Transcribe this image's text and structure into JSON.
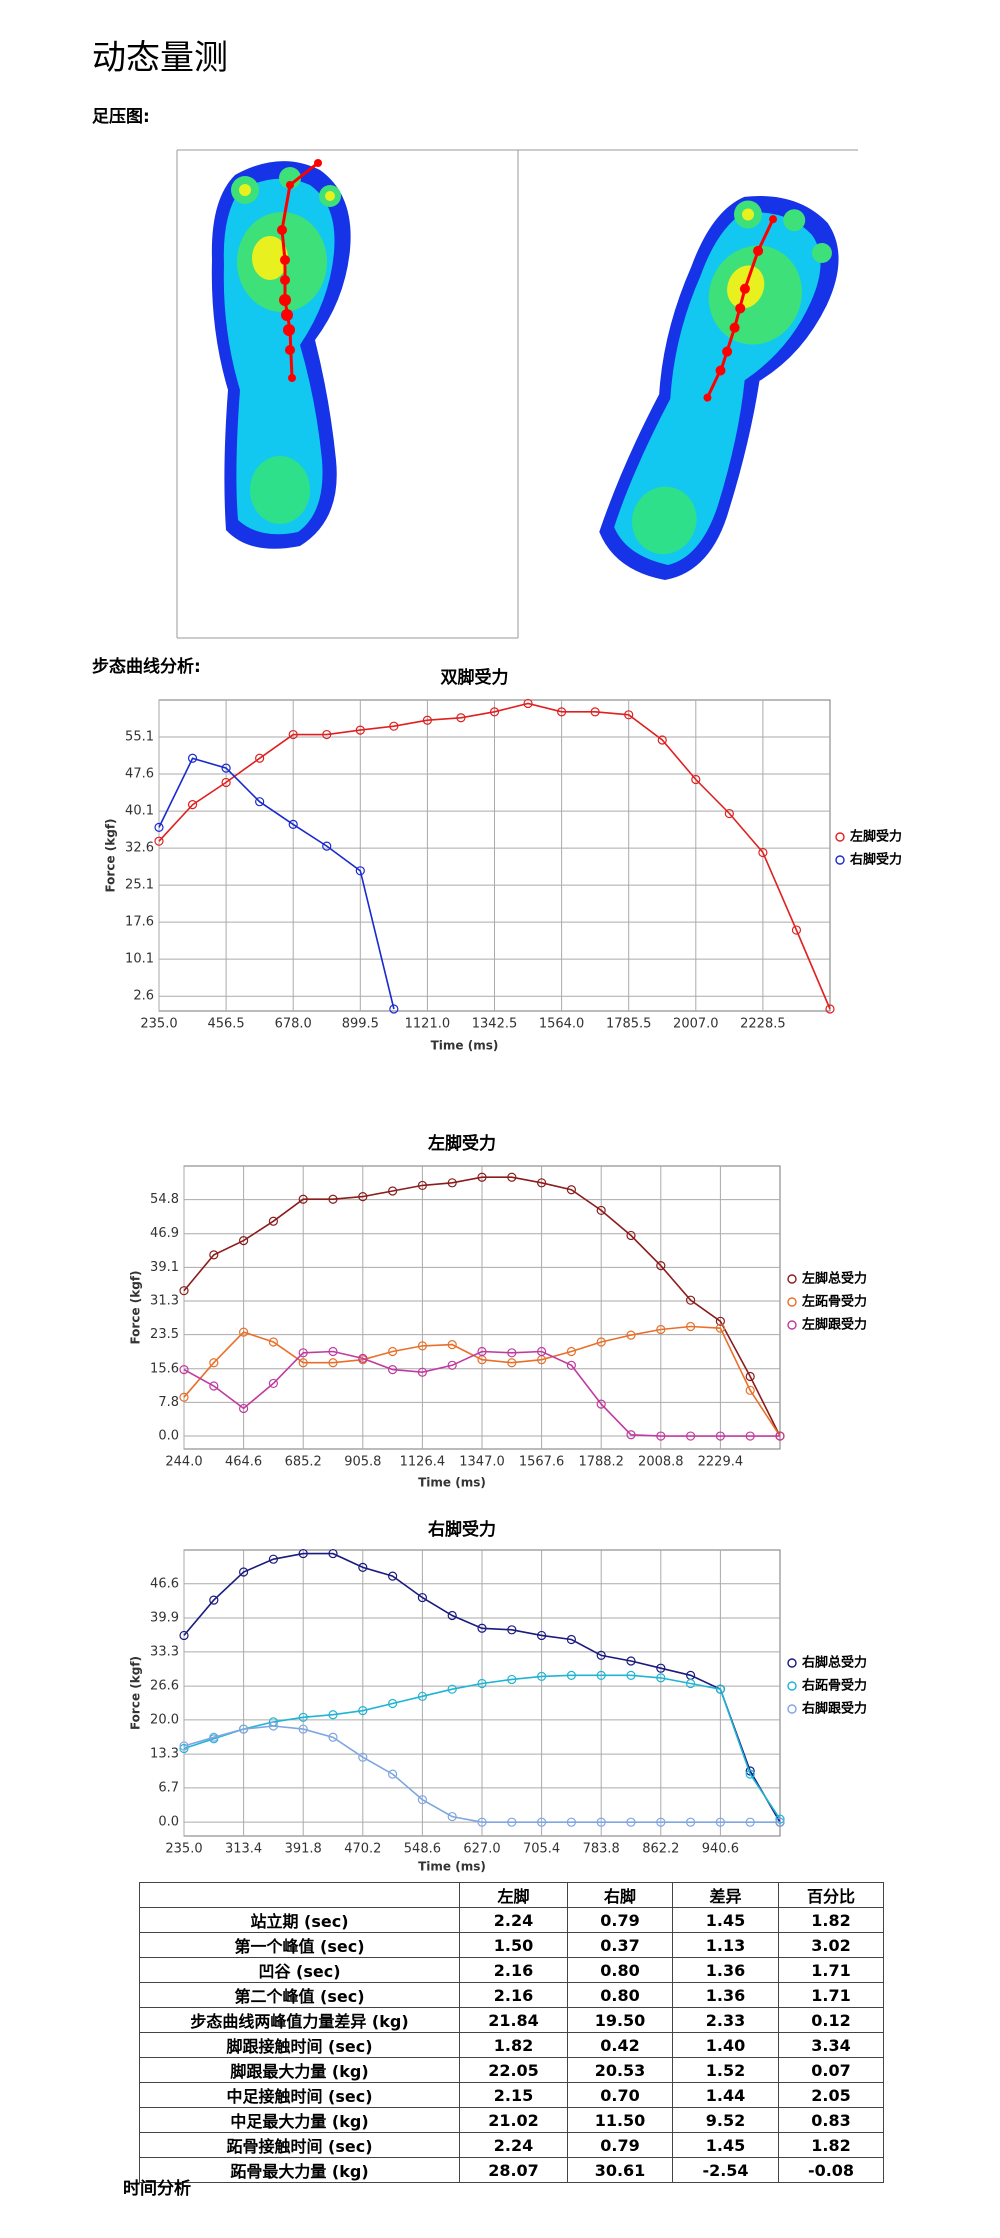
{
  "title": "动态量测",
  "footprint_label": "足压图:",
  "gait_label": "步态曲线分析:",
  "footer_label": "时间分析",
  "chart_data": [
    {
      "type": "line",
      "title": "双脚受力",
      "x_label": "Time (ms)",
      "y_label": "Force (kgf)",
      "grid": true,
      "legend": "right",
      "x": [
        235,
        345.75,
        456.5,
        567.25,
        678,
        788.75,
        899.5,
        1010.25,
        1121,
        1231.75,
        1342.5,
        1453.25,
        1564,
        1674.75,
        1785.5,
        1896.25,
        2007,
        2117.75,
        2228.5,
        2339.25,
        2450
      ],
      "xlim": [
        235,
        2450
      ],
      "xticks": [
        {
          "value": 235,
          "label": "235.0"
        },
        456.5,
        {
          "value": 678,
          "label": "678.0"
        },
        899.5,
        {
          "value": 1121,
          "label": "1121.0"
        },
        1342.5,
        {
          "value": 1564,
          "label": "1564.0"
        },
        1785.5,
        {
          "value": 2007,
          "label": "2007.0"
        },
        2228.5
      ],
      "ylim": [
        -0.4,
        62.6
      ],
      "yticks": [
        2.6,
        10.1,
        17.6,
        25.1,
        32.6,
        40.1,
        47.6,
        55.1
      ],
      "series": [
        {
          "name": "左脚受力",
          "color": "#e02020",
          "values": [
            34.0,
            41.4,
            45.9,
            50.8,
            55.6,
            55.6,
            56.5,
            57.3,
            58.5,
            59.0,
            60.2,
            61.9,
            60.2,
            60.2,
            59.6,
            54.5,
            46.5,
            39.6,
            31.7,
            16.0,
            0
          ]
        },
        {
          "name": "右脚受力",
          "color": "#1a2ad0",
          "values": [
            36.8,
            50.8,
            48.8,
            42.0,
            37.4,
            33.0,
            28.0,
            0,
            null,
            null,
            null,
            null,
            null,
            null,
            null,
            null,
            null,
            null,
            null,
            null,
            null
          ]
        }
      ]
    },
    {
      "type": "line",
      "title": "左脚受力",
      "x_label": "Time (ms)",
      "y_label": "Force (kgf)",
      "grid": true,
      "legend": "right",
      "x": [
        244,
        354.3,
        464.6,
        574.9,
        685.2,
        795.5,
        905.8,
        1016.1,
        1126.4,
        1236.7,
        1347,
        1457.3,
        1567.6,
        1677.9,
        1788.2,
        1898.5,
        2008.8,
        2119.1,
        2229.4,
        2339.7,
        2450
      ],
      "xlim": [
        244,
        2450
      ],
      "xticks": [
        {
          "value": 244,
          "label": "244.0"
        },
        464.6,
        685.2,
        905.8,
        1126.4,
        {
          "value": 1347,
          "label": "1347.0"
        },
        1567.6,
        1788.2,
        2008.8,
        2229.4
      ],
      "ylim": [
        -3,
        62.6
      ],
      "yticks": [
        {
          "value": 0,
          "label": "0.0"
        },
        7.8,
        15.6,
        23.5,
        31.3,
        39.1,
        46.9,
        54.8
      ],
      "series": [
        {
          "name": "左脚总受力",
          "color": "#8b1c1c",
          "values": [
            33.7,
            42.0,
            45.3,
            49.8,
            54.9,
            54.9,
            55.5,
            56.8,
            58.1,
            58.7,
            60.0,
            60.0,
            58.7,
            57.1,
            52.3,
            46.5,
            39.5,
            31.5,
            26.6,
            13.8,
            0
          ]
        },
        {
          "name": "左跖骨受力",
          "color": "#e8702a",
          "values": [
            9.0,
            17.0,
            24.1,
            21.8,
            17.0,
            17.0,
            17.7,
            19.6,
            20.9,
            21.2,
            17.7,
            17.0,
            17.7,
            19.6,
            21.8,
            23.4,
            24.7,
            25.4,
            25.0,
            10.6,
            0
          ]
        },
        {
          "name": "左脚跟受力",
          "color": "#c03aa0",
          "values": [
            15.4,
            11.6,
            6.4,
            12.2,
            19.3,
            19.6,
            18.0,
            15.4,
            14.8,
            16.4,
            19.6,
            19.3,
            19.6,
            16.4,
            7.4,
            0.3,
            0,
            0,
            0,
            0,
            0
          ]
        }
      ]
    },
    {
      "type": "line",
      "title": "右脚受力",
      "x_label": "Time (ms)",
      "y_label": "Force (kgf)",
      "grid": true,
      "legend": "right",
      "x": [
        235,
        274.2,
        313.4,
        352.6,
        391.8,
        431,
        470.2,
        509.4,
        548.6,
        587.8,
        627,
        666.2,
        705.4,
        744.6,
        783.8,
        823,
        862.2,
        901.4,
        940.6,
        979.8,
        1019
      ],
      "xlim": [
        235,
        1019
      ],
      "xticks": [
        {
          "value": 235,
          "label": "235.0"
        },
        313.4,
        391.8,
        470.2,
        548.6,
        {
          "value": 627,
          "label": "627.0"
        },
        705.4,
        783.8,
        862.2,
        940.6
      ],
      "ylim": [
        -2.7,
        53.2
      ],
      "yticks": [
        {
          "value": 0,
          "label": "0.0"
        },
        6.7,
        13.3,
        {
          "value": 20,
          "label": "20.0"
        },
        26.6,
        33.3,
        39.9,
        46.6
      ],
      "series": [
        {
          "name": "右脚总受力",
          "color": "#1a1a80",
          "values": [
            36.5,
            43.4,
            48.9,
            51.4,
            52.5,
            52.5,
            49.8,
            48.1,
            43.9,
            40.4,
            37.9,
            37.6,
            36.5,
            35.7,
            32.6,
            31.5,
            30.1,
            28.7,
            26.0,
            10.0,
            0
          ]
        },
        {
          "name": "右跖骨受力",
          "color": "#20b4d4",
          "values": [
            14.4,
            16.3,
            18.2,
            19.6,
            20.5,
            21.0,
            21.8,
            23.2,
            24.6,
            26.0,
            27.1,
            27.9,
            28.5,
            28.7,
            28.7,
            28.7,
            28.2,
            27.1,
            26.0,
            9.4,
            0.6
          ]
        },
        {
          "name": "右脚跟受力",
          "color": "#7fa6e0",
          "values": [
            14.9,
            16.6,
            18.2,
            18.8,
            18.2,
            16.6,
            12.7,
            9.4,
            4.4,
            1.1,
            0,
            0,
            0,
            0,
            0,
            0,
            0,
            0,
            0,
            0,
            0
          ]
        }
      ]
    }
  ],
  "table": {
    "header": [
      "左脚",
      "右脚",
      "差异",
      "百分比"
    ],
    "rows": [
      [
        "站立期 (sec)",
        "2.24",
        "0.79",
        "1.45",
        "1.82"
      ],
      [
        "第一个峰值 (sec)",
        "1.50",
        "0.37",
        "1.13",
        "3.02"
      ],
      [
        "凹谷 (sec)",
        "2.16",
        "0.80",
        "1.36",
        "1.71"
      ],
      [
        "第二个峰值 (sec)",
        "2.16",
        "0.80",
        "1.36",
        "1.71"
      ],
      [
        "步态曲线两峰值力量差异 (kg)",
        "21.84",
        "19.50",
        "2.33",
        "0.12"
      ],
      [
        "脚跟接触时间 (sec)",
        "1.82",
        "0.42",
        "1.40",
        "3.34"
      ],
      [
        "脚跟最大力量 (kg)",
        "22.05",
        "20.53",
        "1.52",
        "0.07"
      ],
      [
        "中足接触时间 (sec)",
        "2.15",
        "0.70",
        "1.44",
        "2.05"
      ],
      [
        "中足最大力量 (kg)",
        "21.02",
        "11.50",
        "9.52",
        "0.83"
      ],
      [
        "跖骨接触时间 (sec)",
        "2.24",
        "0.79",
        "1.45",
        "1.82"
      ],
      [
        "跖骨最大力量 (kg)",
        "28.07",
        "30.61",
        "-2.54",
        "-0.08"
      ]
    ]
  }
}
